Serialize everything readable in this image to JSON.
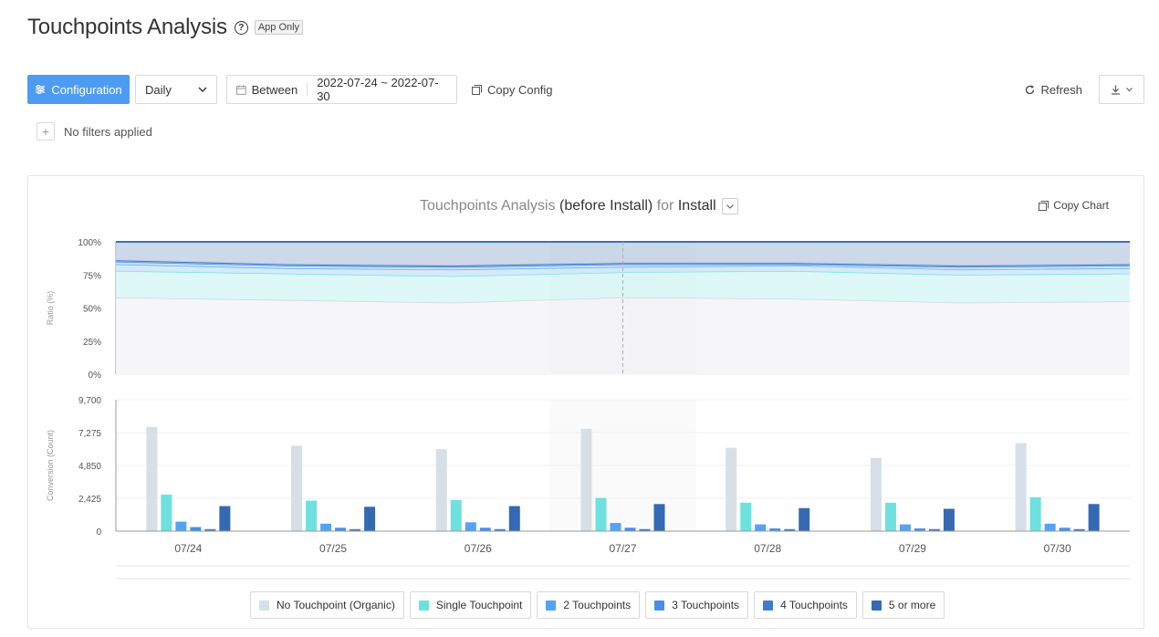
{
  "page": {
    "title": "Touchpoints Analysis",
    "badge": "App Only"
  },
  "toolbar": {
    "config_label": "Configuration",
    "period_value": "Daily",
    "date_mode": "Between",
    "date_range": "2022-07-24 ~ 2022-07-30",
    "copy_config_label": "Copy Config",
    "refresh_label": "Refresh"
  },
  "filters": {
    "empty_label": "No filters applied"
  },
  "chart_header": {
    "title_part1": "Touchpoints Analysis",
    "title_part2": "(before Install)",
    "title_part3": "for",
    "title_part4": "Install",
    "copy_chart_label": "Copy Chart"
  },
  "colors": {
    "primary": "#4e9bf4",
    "organic": "#d7dfe6",
    "single": "#6ee1df",
    "two": "#55a2f2",
    "three": "#4a8fe6",
    "four": "#3f7ccc",
    "five_plus": "#3669b3"
  },
  "chart_data": [
    {
      "type": "area",
      "stacked": true,
      "ylabel": "Ratio (%)",
      "y_ticks": [
        "100%",
        "75%",
        "50%",
        "25%",
        "0%"
      ],
      "ylim": [
        0,
        100
      ],
      "categories": [
        "07/24",
        "07/25",
        "07/26",
        "07/27",
        "07/28",
        "07/29",
        "07/30"
      ],
      "series": [
        {
          "name": "No Touchpoint (Organic)",
          "values": [
            58,
            56,
            54,
            58,
            57,
            54,
            55
          ]
        },
        {
          "name": "Single Touchpoint",
          "values": [
            20,
            20,
            20,
            19,
            21,
            21,
            21
          ]
        },
        {
          "name": "2 Touchpoints",
          "values": [
            5,
            4,
            5,
            4,
            4,
            4,
            4
          ]
        },
        {
          "name": "3 Touchpoints",
          "values": [
            2,
            2,
            2,
            2,
            1,
            2,
            2
          ]
        },
        {
          "name": "4 Touchpoints",
          "values": [
            1,
            1,
            1,
            1,
            1,
            1,
            1
          ]
        },
        {
          "name": "5 or more",
          "values": [
            14,
            17,
            18,
            16,
            16,
            18,
            17
          ]
        }
      ],
      "highlight_category": "07/27",
      "grid": true
    },
    {
      "type": "bar",
      "ylabel": "Conversion (Count)",
      "y_ticks": [
        "9,700",
        "7,275",
        "4,850",
        "2,425",
        "0"
      ],
      "ylim": [
        0,
        9700
      ],
      "categories": [
        "07/24",
        "07/25",
        "07/26",
        "07/27",
        "07/28",
        "07/29",
        "07/30"
      ],
      "series": [
        {
          "name": "No Touchpoint (Organic)",
          "values": [
            7700,
            6300,
            6050,
            7550,
            6150,
            5400,
            6500
          ]
        },
        {
          "name": "Single Touchpoint",
          "values": [
            2700,
            2250,
            2300,
            2450,
            2100,
            2100,
            2500
          ]
        },
        {
          "name": "2 Touchpoints",
          "values": [
            700,
            550,
            650,
            600,
            500,
            500,
            550
          ]
        },
        {
          "name": "3 Touchpoints",
          "values": [
            300,
            250,
            250,
            250,
            200,
            200,
            250
          ]
        },
        {
          "name": "4 Touchpoints",
          "values": [
            150,
            150,
            150,
            150,
            150,
            150,
            150
          ]
        },
        {
          "name": "5 or more",
          "values": [
            1850,
            1800,
            1850,
            2000,
            1700,
            1650,
            2000
          ]
        }
      ],
      "legend_position": "bottom",
      "grid": true
    }
  ]
}
